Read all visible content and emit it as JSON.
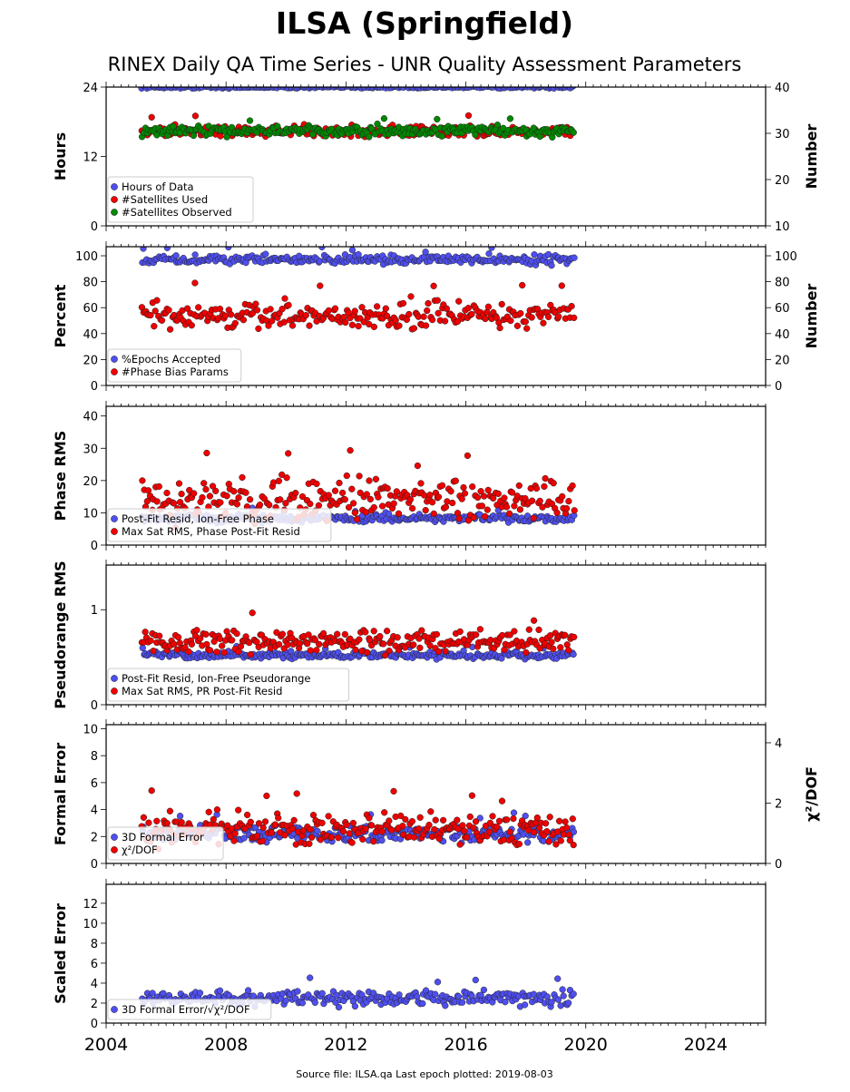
{
  "title": "ILSA (Springfield)",
  "subtitle": "RINEX Daily QA Time Series - UNR Quality Assessment Parameters",
  "footer": "Source file: ILSA.qa Last epoch plotted: 2019-08-03",
  "colors": {
    "blue": "#4f4fef",
    "red": "#ee0000",
    "green": "#008800",
    "edge": "#222222"
  },
  "chart_data": [
    {
      "type": "scatter",
      "ylabel": "Hours",
      "y2label": "Number",
      "xlim": [
        2004,
        2026
      ],
      "ylim": [
        0,
        24
      ],
      "yticks": [
        0,
        12,
        24
      ],
      "y2lim": [
        10,
        40
      ],
      "y2ticks": [
        10,
        20,
        30,
        40
      ],
      "legend": "lower-left",
      "series": [
        {
          "name": "Hours of Data",
          "color": "blue",
          "axis": "left",
          "typical": 24.0,
          "spread": 0.15,
          "start": 2005.2,
          "end": 2019.6
        },
        {
          "name": "#Satellites Used",
          "color": "red",
          "axis": "right",
          "typical": 30.5,
          "spread": 0.8,
          "start": 2005.2,
          "end": 2019.6
        },
        {
          "name": "#Satellites Observed",
          "color": "green",
          "axis": "right",
          "typical": 30.5,
          "spread": 0.8,
          "start": 2005.2,
          "end": 2019.6
        }
      ]
    },
    {
      "type": "scatter",
      "ylabel": "Percent",
      "y2label": "Number",
      "xlim": [
        2004,
        2026
      ],
      "ylim": [
        0,
        107
      ],
      "yticks": [
        0,
        20,
        40,
        60,
        80,
        100
      ],
      "y2lim": [
        0,
        107
      ],
      "y2ticks": [
        0,
        20,
        40,
        60,
        80,
        100
      ],
      "legend": "lower-left",
      "series": [
        {
          "name": "%Epochs Accepted",
          "color": "blue",
          "axis": "left",
          "typical": 97,
          "spread": 2.5,
          "start": 2005.2,
          "end": 2019.6
        },
        {
          "name": "#Phase Bias Params",
          "color": "red",
          "axis": "right",
          "typical": 54,
          "spread": 6,
          "start": 2005.2,
          "end": 2019.6
        }
      ]
    },
    {
      "type": "scatter",
      "ylabel": "Phase RMS",
      "xlim": [
        2004,
        2026
      ],
      "ylim": [
        0,
        43
      ],
      "yticks": [
        0,
        10,
        20,
        30,
        40
      ],
      "legend": "lower-left",
      "series": [
        {
          "name": "Post-Fit Resid, Ion-Free Phase",
          "color": "blue",
          "axis": "left",
          "typical": 8.3,
          "spread": 0.8,
          "start": 2005.2,
          "end": 2019.6
        },
        {
          "name": "Max Sat RMS, Phase Post-Fit Resid",
          "color": "red",
          "axis": "left",
          "typical": 14,
          "spread": 4.5,
          "start": 2005.2,
          "end": 2019.6
        }
      ]
    },
    {
      "type": "scatter",
      "ylabel": "Pseudorange RMS",
      "xlim": [
        2004,
        2026
      ],
      "ylim": [
        0,
        1.47
      ],
      "yticks": [
        0,
        1
      ],
      "legend": "lower-left",
      "series": [
        {
          "name": "Post-Fit Resid, Ion-Free Pseudorange",
          "color": "blue",
          "axis": "left",
          "typical": 0.52,
          "spread": 0.025,
          "start": 2005.2,
          "end": 2019.6
        },
        {
          "name": "Max Sat RMS, PR Post-Fit Resid",
          "color": "red",
          "axis": "left",
          "typical": 0.67,
          "spread": 0.08,
          "start": 2005.2,
          "end": 2019.6
        }
      ]
    },
    {
      "type": "scatter",
      "ylabel": "Formal Error",
      "y2label": "χ²/DOF",
      "xlim": [
        2004,
        2026
      ],
      "ylim": [
        0,
        10.3
      ],
      "yticks": [
        0,
        2,
        4,
        6,
        8,
        10
      ],
      "y2lim": [
        0,
        4.6
      ],
      "y2ticks": [
        0,
        2,
        4
      ],
      "legend": "lower-left",
      "series": [
        {
          "name": "3D Formal Error",
          "color": "blue",
          "axis": "left",
          "typical": 2.2,
          "spread": 0.4,
          "start": 2005.2,
          "end": 2019.6
        },
        {
          "name": "χ²/DOF",
          "color": "red",
          "axis": "right",
          "typical": 1.1,
          "spread": 0.35,
          "start": 2005.2,
          "end": 2019.6
        }
      ]
    },
    {
      "type": "scatter",
      "ylabel": "Scaled Error",
      "xlim": [
        2004,
        2026
      ],
      "ylim": [
        0,
        13.9
      ],
      "yticks": [
        0,
        2,
        4,
        6,
        8,
        10,
        12
      ],
      "xticks": [
        2004,
        2008,
        2012,
        2016,
        2020,
        2024
      ],
      "legend": "lower-left",
      "series": [
        {
          "name": "3D Formal Error/√χ²/DOF",
          "color": "blue",
          "axis": "left",
          "typical": 2.5,
          "spread": 0.5,
          "start": 2005.2,
          "end": 2019.6
        }
      ]
    }
  ]
}
